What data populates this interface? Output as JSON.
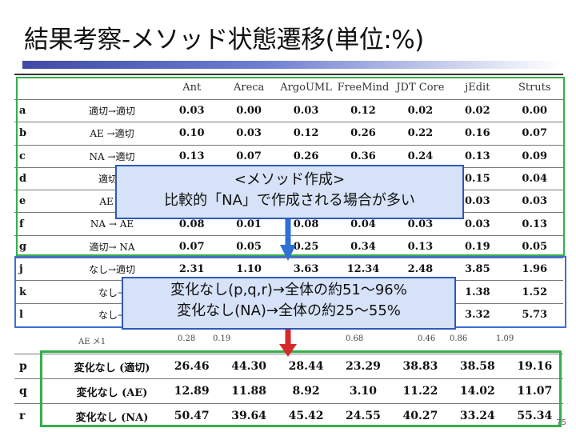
{
  "slide": {
    "title": "結果考察-メソッド状態遷移(単位:%)",
    "page_number": "75"
  },
  "table_top": {
    "headers": [
      "",
      "",
      "Ant",
      "Areca",
      "ArgoUML",
      "FreeMind",
      "JDT Core",
      "jEdit",
      "Struts"
    ],
    "rows": [
      {
        "id": "a",
        "label": "適切→適切",
        "values": [
          "0.03",
          "0.00",
          "0.03",
          "0.12",
          "0.02",
          "0.02",
          "0.00"
        ]
      },
      {
        "id": "b",
        "label": "AE →適切",
        "values": [
          "0.10",
          "0.03",
          "0.12",
          "0.26",
          "0.22",
          "0.16",
          "0.07"
        ]
      },
      {
        "id": "c",
        "label": "NA →適切",
        "values": [
          "0.13",
          "0.07",
          "0.26",
          "0.36",
          "0.24",
          "0.13",
          "0.09"
        ]
      },
      {
        "id": "d",
        "label": "適切→",
        "values": [
          "",
          "",
          "",
          "",
          "",
          "0.15",
          "0.04"
        ]
      },
      {
        "id": "e",
        "label": "AE →",
        "values": [
          "",
          "",
          "",
          "",
          "",
          "0.03",
          "0.03"
        ]
      },
      {
        "id": "f",
        "label": "NA → AE",
        "values": [
          "0.08",
          "0.01",
          "0.08",
          "0.04",
          "0.03",
          "0.03",
          "0.13"
        ]
      },
      {
        "id": "g",
        "label": "適切→ NA",
        "values": [
          "0.07",
          "0.05",
          "0.25",
          "0.34",
          "0.13",
          "0.19",
          "0.05"
        ]
      },
      {
        "id": "j",
        "label": "なし→適切",
        "values": [
          "2.31",
          "1.10",
          "3.63",
          "12.34",
          "2.48",
          "3.85",
          "1.96"
        ]
      },
      {
        "id": "k",
        "label": "なし→",
        "values": [
          "",
          "",
          "",
          "",
          "",
          "1.38",
          "1.52"
        ]
      },
      {
        "id": "l",
        "label": "なし→",
        "values": [
          "",
          "",
          "",
          "",
          "",
          "3.32",
          "5.73"
        ]
      }
    ]
  },
  "faint_row": {
    "label": "AE メ1",
    "values": [
      "0.28",
      "0.19",
      "",
      "0.68",
      "0.46",
      "0.86",
      "1.09"
    ]
  },
  "table_bottom": {
    "rows": [
      {
        "id": "p",
        "label": "変化なし (適切)",
        "values": [
          "26.46",
          "44.30",
          "28.44",
          "23.29",
          "38.83",
          "38.58",
          "19.16"
        ]
      },
      {
        "id": "q",
        "label": "変化なし (AE)",
        "values": [
          "12.89",
          "11.88",
          "8.92",
          "3.10",
          "11.22",
          "14.02",
          "11.07"
        ]
      },
      {
        "id": "r",
        "label": "変化なし (NA)",
        "values": [
          "50.47",
          "39.64",
          "45.42",
          "24.55",
          "40.27",
          "33.24",
          "55.34"
        ]
      }
    ]
  },
  "callout_create": {
    "line1": "<メソッド作成>",
    "line2": "比較的「NA」で作成される場合が多い"
  },
  "callout_nochange": {
    "line1": "変化なし(p,q,r)→全体の約51～96%",
    "line2": "変化なし(NA)→全体の約25～55%"
  },
  "colors": {
    "green_highlight": "#33b04a",
    "blue_highlight": "#3a6fd8",
    "callout_fill": "#d6e2f7",
    "arrow_blue": "#2f6fd6",
    "arrow_red": "#d62a2a"
  }
}
